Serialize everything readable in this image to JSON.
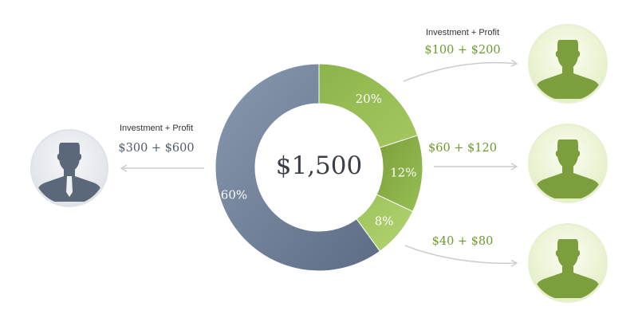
{
  "total": "$1,500",
  "segments": [
    {
      "id": "large",
      "percent": 60,
      "label": "60%",
      "color_from": "#8999b0",
      "color_to": "#5d6c84"
    },
    {
      "id": "a",
      "percent": 20,
      "label": "20%",
      "color_from": "#8cb44a",
      "color_to": "#a5c860"
    },
    {
      "id": "b",
      "percent": 12,
      "label": "12%",
      "color_from": "#7c9e3a",
      "color_to": "#97bf55"
    },
    {
      "id": "c",
      "percent": 8,
      "label": "8%",
      "color_from": "#9dc25a",
      "color_to": "#b3d474"
    }
  ],
  "left_person": {
    "caption": "Investment + Profit",
    "amount": "$300 + $600",
    "color": "#5b6879",
    "icon": "person-avatar-icon"
  },
  "right_people": [
    {
      "caption": "Investment + Profit",
      "amount": "$100 + $200",
      "color": "#7d9e3d",
      "icon": "person-avatar-icon"
    },
    {
      "caption": "",
      "amount": "$60 + $120",
      "color": "#7d9e3d",
      "icon": "person-avatar-icon"
    },
    {
      "caption": "",
      "amount": "$40 + $80",
      "color": "#7d9e3d",
      "icon": "person-avatar-icon"
    }
  ]
}
